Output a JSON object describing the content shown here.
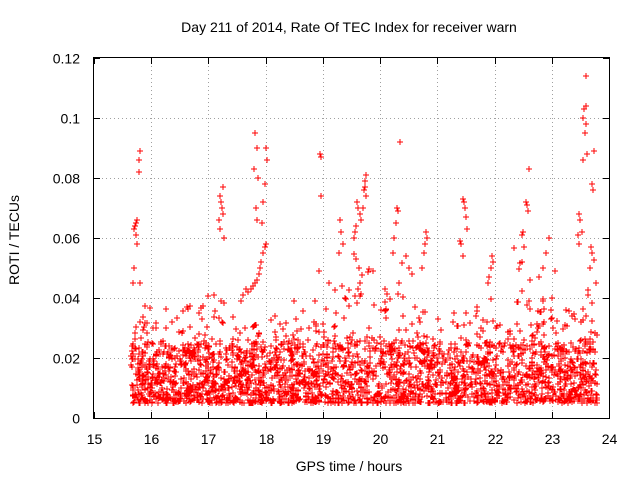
{
  "chart_data": {
    "type": "scatter",
    "title": "Day 211 of 2014, Rate Of TEC Index for receiver warn",
    "xlabel": "GPS time / hours",
    "ylabel": "ROTI / TECUs",
    "xlim": [
      15,
      24
    ],
    "ylim": [
      0,
      0.12
    ],
    "grid": true,
    "marker": "+",
    "x_ticks": [
      15,
      16,
      17,
      18,
      19,
      20,
      21,
      22,
      23,
      24
    ],
    "x_tick_labels": [
      "15",
      "16",
      "17",
      "18",
      "19",
      "20",
      "21",
      "22",
      "23",
      "24"
    ],
    "y_ticks": [
      0,
      0.02,
      0.04,
      0.06,
      0.08,
      0.1,
      0.12
    ],
    "y_tick_labels": [
      "0",
      "0.02",
      "0.04",
      "0.06",
      "0.08",
      "0.1",
      "0.12"
    ],
    "series": [
      {
        "name": "ROTI",
        "color": "#ff0000",
        "x_range": [
          15.65,
          23.8
        ],
        "baseline_range": [
          0.005,
          0.025
        ],
        "points": [
          [
            15.7,
            0.063
          ],
          [
            15.72,
            0.064
          ],
          [
            15.74,
            0.065
          ],
          [
            15.75,
            0.066
          ],
          [
            15.73,
            0.061
          ],
          [
            15.76,
            0.058
          ],
          [
            15.7,
            0.05
          ],
          [
            15.68,
            0.045
          ],
          [
            15.8,
            0.089
          ],
          [
            15.79,
            0.086
          ],
          [
            15.78,
            0.082
          ],
          [
            17.2,
            0.074
          ],
          [
            17.22,
            0.072
          ],
          [
            17.24,
            0.07
          ],
          [
            17.25,
            0.068
          ],
          [
            17.26,
            0.077
          ],
          [
            17.2,
            0.063
          ],
          [
            17.28,
            0.06
          ],
          [
            17.18,
            0.066
          ],
          [
            17.82,
            0.095
          ],
          [
            17.84,
            0.09
          ],
          [
            17.8,
            0.083
          ],
          [
            17.86,
            0.08
          ],
          [
            17.83,
            0.07
          ],
          [
            17.85,
            0.066
          ],
          [
            18.0,
            0.09
          ],
          [
            18.02,
            0.086
          ],
          [
            17.98,
            0.078
          ],
          [
            17.96,
            0.072
          ],
          [
            17.94,
            0.065
          ],
          [
            18.0,
            0.058
          ],
          [
            17.98,
            0.057
          ],
          [
            17.96,
            0.055
          ],
          [
            17.92,
            0.052
          ],
          [
            17.9,
            0.05
          ],
          [
            17.88,
            0.048
          ],
          [
            17.85,
            0.046
          ],
          [
            17.82,
            0.045
          ],
          [
            17.78,
            0.044
          ],
          [
            17.75,
            0.043
          ],
          [
            17.7,
            0.042
          ],
          [
            17.65,
            0.043
          ],
          [
            17.6,
            0.041
          ],
          [
            18.95,
            0.088
          ],
          [
            18.97,
            0.087
          ],
          [
            18.96,
            0.074
          ],
          [
            18.94,
            0.049
          ],
          [
            19.3,
            0.066
          ],
          [
            19.32,
            0.062
          ],
          [
            19.35,
            0.058
          ],
          [
            19.28,
            0.055
          ],
          [
            19.6,
            0.072
          ],
          [
            19.62,
            0.07
          ],
          [
            19.64,
            0.068
          ],
          [
            19.66,
            0.066
          ],
          [
            19.58,
            0.064
          ],
          [
            19.56,
            0.062
          ],
          [
            19.55,
            0.06
          ],
          [
            19.75,
            0.081
          ],
          [
            19.74,
            0.079
          ],
          [
            19.73,
            0.077
          ],
          [
            19.72,
            0.076
          ],
          [
            19.76,
            0.074
          ],
          [
            19.7,
            0.07
          ],
          [
            20.35,
            0.092
          ],
          [
            20.3,
            0.07
          ],
          [
            20.32,
            0.069
          ],
          [
            20.28,
            0.065
          ],
          [
            20.25,
            0.06
          ],
          [
            20.22,
            0.055
          ],
          [
            20.45,
            0.054
          ],
          [
            20.5,
            0.05
          ],
          [
            20.55,
            0.048
          ],
          [
            20.8,
            0.062
          ],
          [
            20.82,
            0.06
          ],
          [
            20.78,
            0.058
          ],
          [
            20.76,
            0.055
          ],
          [
            20.74,
            0.05
          ],
          [
            21.45,
            0.073
          ],
          [
            21.47,
            0.072
          ],
          [
            21.49,
            0.07
          ],
          [
            21.5,
            0.067
          ],
          [
            21.52,
            0.063
          ],
          [
            21.4,
            0.059
          ],
          [
            21.42,
            0.058
          ],
          [
            21.44,
            0.054
          ],
          [
            21.95,
            0.054
          ],
          [
            21.97,
            0.052
          ],
          [
            21.93,
            0.05
          ],
          [
            21.9,
            0.047
          ],
          [
            21.88,
            0.045
          ],
          [
            22.6,
            0.083
          ],
          [
            22.55,
            0.072
          ],
          [
            22.57,
            0.071
          ],
          [
            22.59,
            0.069
          ],
          [
            22.5,
            0.062
          ],
          [
            22.52,
            0.057
          ],
          [
            22.48,
            0.052
          ],
          [
            22.95,
            0.06
          ],
          [
            22.9,
            0.055
          ],
          [
            22.85,
            0.05
          ],
          [
            23.45,
            0.061
          ],
          [
            23.47,
            0.058
          ],
          [
            23.5,
            0.066
          ],
          [
            23.52,
            0.062
          ],
          [
            23.48,
            0.068
          ],
          [
            23.55,
            0.1
          ],
          [
            23.57,
            0.103
          ],
          [
            23.59,
            0.104
          ],
          [
            23.6,
            0.098
          ],
          [
            23.58,
            0.095
          ],
          [
            23.6,
            0.114
          ],
          [
            23.62,
            0.088
          ],
          [
            23.55,
            0.086
          ],
          [
            23.7,
            0.078
          ],
          [
            23.72,
            0.076
          ],
          [
            23.74,
            0.089
          ],
          [
            23.68,
            0.057
          ],
          [
            23.7,
            0.055
          ],
          [
            23.66,
            0.05
          ]
        ]
      }
    ]
  }
}
